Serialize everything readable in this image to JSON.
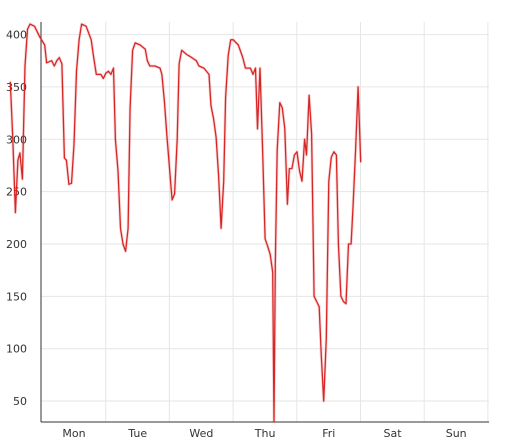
{
  "chart_data": {
    "type": "line",
    "title": "",
    "xlabel": "",
    "ylabel": "",
    "grid": true,
    "legend": "none",
    "ylim": [
      30,
      412
    ],
    "y_ticks": [
      50,
      100,
      150,
      200,
      250,
      300,
      350,
      400
    ],
    "categories": [
      "Mon",
      "Tue",
      "Wed",
      "Thu",
      "Fri",
      "Sat",
      "Sun"
    ],
    "series": [
      {
        "color": "#d62728",
        "points": [
          [
            -1.0,
            355
          ],
          [
            -0.96,
            300
          ],
          [
            -0.92,
            230
          ],
          [
            -0.88,
            280
          ],
          [
            -0.85,
            287
          ],
          [
            -0.81,
            262
          ],
          [
            -0.77,
            370
          ],
          [
            -0.73,
            405
          ],
          [
            -0.69,
            410
          ],
          [
            -0.62,
            408
          ],
          [
            -0.54,
            398
          ],
          [
            -0.46,
            390
          ],
          [
            -0.43,
            373
          ],
          [
            -0.35,
            375
          ],
          [
            -0.31,
            370
          ],
          [
            -0.27,
            375
          ],
          [
            -0.23,
            378
          ],
          [
            -0.19,
            372
          ],
          [
            -0.15,
            282
          ],
          [
            -0.12,
            280
          ],
          [
            -0.08,
            257
          ],
          [
            -0.04,
            258
          ],
          [
            0.0,
            295
          ],
          [
            0.04,
            365
          ],
          [
            0.08,
            395
          ],
          [
            0.12,
            410
          ],
          [
            0.19,
            408
          ],
          [
            0.27,
            395
          ],
          [
            0.31,
            378
          ],
          [
            0.35,
            362
          ],
          [
            0.42,
            362
          ],
          [
            0.46,
            358
          ],
          [
            0.5,
            363
          ],
          [
            0.54,
            365
          ],
          [
            0.58,
            362
          ],
          [
            0.62,
            368
          ],
          [
            0.65,
            300
          ],
          [
            0.69,
            270
          ],
          [
            0.73,
            215
          ],
          [
            0.77,
            200
          ],
          [
            0.81,
            193
          ],
          [
            0.85,
            215
          ],
          [
            0.88,
            330
          ],
          [
            0.92,
            385
          ],
          [
            0.96,
            392
          ],
          [
            1.04,
            390
          ],
          [
            1.12,
            386
          ],
          [
            1.15,
            375
          ],
          [
            1.19,
            370
          ],
          [
            1.27,
            370
          ],
          [
            1.35,
            368
          ],
          [
            1.38,
            362
          ],
          [
            1.42,
            335
          ],
          [
            1.46,
            302
          ],
          [
            1.54,
            242
          ],
          [
            1.58,
            248
          ],
          [
            1.62,
            300
          ],
          [
            1.65,
            372
          ],
          [
            1.69,
            385
          ],
          [
            1.77,
            381
          ],
          [
            1.85,
            378
          ],
          [
            1.92,
            375
          ],
          [
            1.96,
            370
          ],
          [
            2.04,
            368
          ],
          [
            2.12,
            362
          ],
          [
            2.15,
            332
          ],
          [
            2.19,
            320
          ],
          [
            2.23,
            302
          ],
          [
            2.27,
            265
          ],
          [
            2.31,
            215
          ],
          [
            2.35,
            260
          ],
          [
            2.38,
            340
          ],
          [
            2.42,
            380
          ],
          [
            2.46,
            395
          ],
          [
            2.5,
            395
          ],
          [
            2.58,
            390
          ],
          [
            2.65,
            378
          ],
          [
            2.69,
            368
          ],
          [
            2.77,
            368
          ],
          [
            2.81,
            362
          ],
          [
            2.85,
            368
          ],
          [
            2.88,
            310
          ],
          [
            2.92,
            368
          ],
          [
            2.96,
            290
          ],
          [
            3.0,
            205
          ],
          [
            3.04,
            198
          ],
          [
            3.08,
            190
          ],
          [
            3.12,
            173
          ],
          [
            3.14,
            30
          ],
          [
            3.16,
            180
          ],
          [
            3.19,
            290
          ],
          [
            3.23,
            335
          ],
          [
            3.27,
            330
          ],
          [
            3.31,
            310
          ],
          [
            3.35,
            238
          ],
          [
            3.38,
            272
          ],
          [
            3.42,
            272
          ],
          [
            3.46,
            285
          ],
          [
            3.5,
            288
          ],
          [
            3.54,
            270
          ],
          [
            3.58,
            260
          ],
          [
            3.62,
            300
          ],
          [
            3.65,
            285
          ],
          [
            3.69,
            342
          ],
          [
            3.73,
            305
          ],
          [
            3.77,
            150
          ],
          [
            3.81,
            145
          ],
          [
            3.85,
            140
          ],
          [
            3.88,
            95
          ],
          [
            3.92,
            50
          ],
          [
            3.96,
            110
          ],
          [
            4.0,
            260
          ],
          [
            4.04,
            283
          ],
          [
            4.08,
            288
          ],
          [
            4.12,
            285
          ],
          [
            4.15,
            200
          ],
          [
            4.19,
            150
          ],
          [
            4.23,
            145
          ],
          [
            4.27,
            143
          ],
          [
            4.31,
            200
          ],
          [
            4.35,
            200
          ],
          [
            4.38,
            235
          ],
          [
            4.42,
            290
          ],
          [
            4.46,
            350
          ],
          [
            4.5,
            278
          ]
        ]
      }
    ]
  }
}
